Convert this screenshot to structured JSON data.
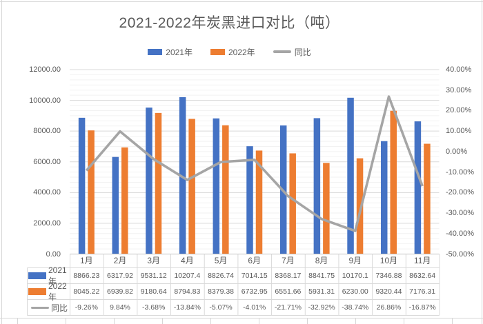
{
  "chart_data": {
    "type": "bar+line",
    "title": "2021-2022年炭黑进口对比（吨）",
    "categories": [
      "1月",
      "2月",
      "3月",
      "4月",
      "5月",
      "6月",
      "7月",
      "8月",
      "9月",
      "10月",
      "11月"
    ],
    "series": [
      {
        "name": "2021年",
        "type": "bar",
        "color": "#4472C4",
        "axis": "primary",
        "values": [
          8866.23,
          6317.92,
          9531.12,
          10207.4,
          8826.74,
          7014.15,
          8368.17,
          8841.75,
          10170.1,
          7346.88,
          8632.64
        ]
      },
      {
        "name": "2022年",
        "type": "bar",
        "color": "#ED7D31",
        "axis": "primary",
        "values": [
          8045.22,
          6939.82,
          9180.64,
          8794.83,
          8379.38,
          6732.95,
          6551.66,
          5931.31,
          6230.0,
          9320.44,
          7176.31
        ]
      },
      {
        "name": "同比",
        "type": "line",
        "color": "#A5A5A5",
        "axis": "secondary",
        "unit": "%",
        "values": [
          -9.26,
          9.84,
          -3.68,
          -13.84,
          -5.07,
          -4.01,
          -21.71,
          -32.92,
          -38.74,
          26.86,
          -16.87
        ]
      }
    ],
    "primary_axis": {
      "min": 0,
      "max": 12000,
      "major": 2000,
      "minor": 333.33,
      "tick_labels": [
        "12000.00",
        "10000.00",
        "8000.00",
        "6000.00",
        "4000.00",
        "2000.00",
        "0.00"
      ]
    },
    "secondary_axis": {
      "min": -50,
      "max": 40,
      "major": 10,
      "tick_labels": [
        "40.00%",
        "30.00%",
        "20.00%",
        "10.00%",
        "0.00%",
        "-10.00%",
        "-20.00%",
        "-30.00%",
        "-40.00%",
        "-50.00%"
      ]
    },
    "legend_position": "top",
    "gridlines": {
      "major": true,
      "minor": true
    },
    "data_table": {
      "show_legend_keys": true,
      "rows": [
        {
          "label": "2021年",
          "cells": [
            "8866.23",
            "6317.92",
            "9531.12",
            "10207.4",
            "8826.74",
            "7014.15",
            "8368.17",
            "8841.75",
            "10170.1",
            "7346.88",
            "8632.64"
          ]
        },
        {
          "label": "2022年",
          "cells": [
            "8045.22",
            "6939.82",
            "9180.64",
            "8794.83",
            "8379.38",
            "6732.95",
            "6551.66",
            "5931.31",
            "6230.00",
            "9320.44",
            "7176.31"
          ]
        },
        {
          "label": "同比",
          "cells": [
            "-9.26%",
            "9.84%",
            "-3.68%",
            "-13.84%",
            "-5.07%",
            "-4.01%",
            "-21.71%",
            "-32.92%",
            "-38.74%",
            "26.86%",
            "-16.87%"
          ]
        }
      ]
    },
    "colors": {
      "grid_major": "#D9D9D9",
      "grid_minor": "#F2F2F2",
      "axis_line": "#BFBFBF",
      "table_border": "#D9D9D9",
      "text": "#595959"
    }
  }
}
